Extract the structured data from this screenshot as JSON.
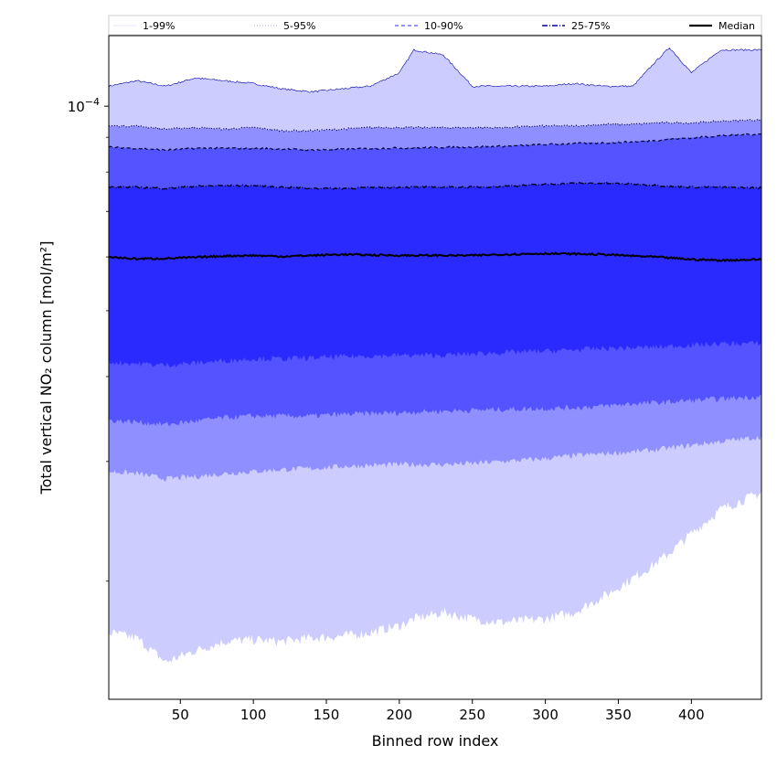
{
  "chart_data": {
    "type": "area",
    "xlabel": "Binned row index",
    "ylabel": "Total vertical NO₂ column [mol/m²]",
    "x_range": [
      1,
      448
    ],
    "x_ticks": [
      50,
      100,
      150,
      200,
      250,
      300,
      350,
      400
    ],
    "y_scale": "log",
    "y_range": [
      1.34e-05,
      0.000127
    ],
    "y_major_ticks": [
      {
        "value": 0.0001,
        "label": "10^-4"
      }
    ],
    "y_minor_ticks": [
      2e-05,
      3e-05,
      4e-05,
      5e-05,
      6e-05,
      7e-05,
      8e-05,
      9e-05
    ],
    "grid": false,
    "legend_position": "top, above plot",
    "legend": [
      {
        "label": "1-99%",
        "color": "#ccccff",
        "style": "solid-thin"
      },
      {
        "label": "5-95%",
        "color": "#9999ff",
        "style": "dotted"
      },
      {
        "label": "10-90%",
        "color": "#5555ff",
        "style": "dashed"
      },
      {
        "label": "25-75%",
        "color": "#0000aa",
        "style": "dashdot"
      },
      {
        "label": "Median",
        "color": "#000000",
        "style": "solid-thick"
      }
    ],
    "colors": {
      "band_1_99": "#ccccff",
      "band_5_95": "#8f8fff",
      "band_10_90": "#5353ff",
      "band_25_75": "#2a2aff",
      "median": "#000000"
    },
    "x_nodes": [
      1,
      20,
      40,
      60,
      80,
      100,
      120,
      140,
      160,
      180,
      200,
      210,
      230,
      250,
      270,
      300,
      320,
      340,
      360,
      375,
      385,
      400,
      420,
      448
    ],
    "series": [
      {
        "name": "1-99%",
        "kind": "band",
        "upper": [
          0.000107,
          0.000109,
          0.000107,
          0.00011,
          0.000109,
          0.000108,
          0.000106,
          0.000105,
          0.000106,
          0.000107,
          0.000112,
          0.000121,
          0.000119,
          0.000107,
          0.000107,
          0.000107,
          0.000108,
          0.000107,
          0.000107,
          0.000116,
          0.000122,
          0.000112,
          0.000121,
          0.000121
        ],
        "lower": [
          1.68e-05,
          1.65e-05,
          1.52e-05,
          1.58e-05,
          1.63e-05,
          1.64e-05,
          1.63e-05,
          1.65e-05,
          1.66e-05,
          1.68e-05,
          1.72e-05,
          1.76e-05,
          1.8e-05,
          1.76e-05,
          1.74e-05,
          1.76e-05,
          1.8e-05,
          1.9e-05,
          2.02e-05,
          2.12e-05,
          2.2e-05,
          2.35e-05,
          2.55e-05,
          2.7e-05
        ]
      },
      {
        "name": "5-95%",
        "kind": "band",
        "upper": [
          9.35e-05,
          9.35e-05,
          9.25e-05,
          9.3e-05,
          9.25e-05,
          9.3e-05,
          9.2e-05,
          9.2e-05,
          9.25e-05,
          9.3e-05,
          9.3e-05,
          9.3e-05,
          9.3e-05,
          9.3e-05,
          9.3e-05,
          9.35e-05,
          9.35e-05,
          9.4e-05,
          9.4e-05,
          9.45e-05,
          9.45e-05,
          9.45e-05,
          9.5e-05,
          9.55e-05
        ],
        "lower": [
          2.9e-05,
          2.88e-05,
          2.83e-05,
          2.85e-05,
          2.88e-05,
          2.9e-05,
          2.92e-05,
          2.93e-05,
          2.95e-05,
          2.96e-05,
          2.97e-05,
          2.97e-05,
          2.97e-05,
          2.98e-05,
          3e-05,
          3.03e-05,
          3.06e-05,
          3.08e-05,
          3.1e-05,
          3.12e-05,
          3.14e-05,
          3.17e-05,
          3.21e-05,
          3.26e-05
        ]
      },
      {
        "name": "10-90%",
        "kind": "band",
        "upper": [
          8.7e-05,
          8.67e-05,
          8.62e-05,
          8.67e-05,
          8.67e-05,
          8.67e-05,
          8.65e-05,
          8.62e-05,
          8.64e-05,
          8.66e-05,
          8.68e-05,
          8.68e-05,
          8.7e-05,
          8.71e-05,
          8.73e-05,
          8.78e-05,
          8.81e-05,
          8.83e-05,
          8.86e-05,
          8.9e-05,
          8.95e-05,
          8.98e-05,
          9.05e-05,
          9.1e-05
        ],
        "lower": [
          3.45e-05,
          3.43e-05,
          3.4e-05,
          3.44e-05,
          3.48e-05,
          3.5e-05,
          3.5e-05,
          3.5e-05,
          3.52e-05,
          3.53e-05,
          3.54e-05,
          3.55e-05,
          3.56e-05,
          3.57e-05,
          3.58e-05,
          3.59e-05,
          3.6e-05,
          3.62e-05,
          3.65e-05,
          3.66e-05,
          3.67e-05,
          3.69e-05,
          3.71e-05,
          3.74e-05
        ]
      },
      {
        "name": "25-75%",
        "kind": "band",
        "upper": [
          7.6e-05,
          7.6e-05,
          7.57e-05,
          7.62e-05,
          7.64e-05,
          7.64e-05,
          7.6e-05,
          7.57e-05,
          7.57e-05,
          7.59e-05,
          7.6e-05,
          7.6e-05,
          7.6e-05,
          7.6e-05,
          7.62e-05,
          7.67e-05,
          7.7e-05,
          7.7e-05,
          7.68e-05,
          7.65e-05,
          7.62e-05,
          7.6e-05,
          7.6e-05,
          7.58e-05
        ],
        "lower": [
          4.2e-05,
          4.18e-05,
          4.16e-05,
          4.19e-05,
          4.22e-05,
          4.25e-05,
          4.25e-05,
          4.26e-05,
          4.28e-05,
          4.29e-05,
          4.3e-05,
          4.3e-05,
          4.3e-05,
          4.32e-05,
          4.34e-05,
          4.36e-05,
          4.38e-05,
          4.4e-05,
          4.41e-05,
          4.42e-05,
          4.43e-05,
          4.45e-05,
          4.47e-05,
          4.48e-05
        ]
      },
      {
        "name": "Median",
        "kind": "line",
        "values": [
          6e-05,
          5.96e-05,
          5.97e-05,
          5.99e-05,
          6.02e-05,
          6.03e-05,
          6.01e-05,
          6.03e-05,
          6.05e-05,
          6.04e-05,
          6.03e-05,
          6.03e-05,
          6.03e-05,
          6.03e-05,
          6.05e-05,
          6.07e-05,
          6.06e-05,
          6.05e-05,
          6.02e-05,
          6e-05,
          5.98e-05,
          5.95e-05,
          5.93e-05,
          5.95e-05
        ]
      }
    ]
  }
}
